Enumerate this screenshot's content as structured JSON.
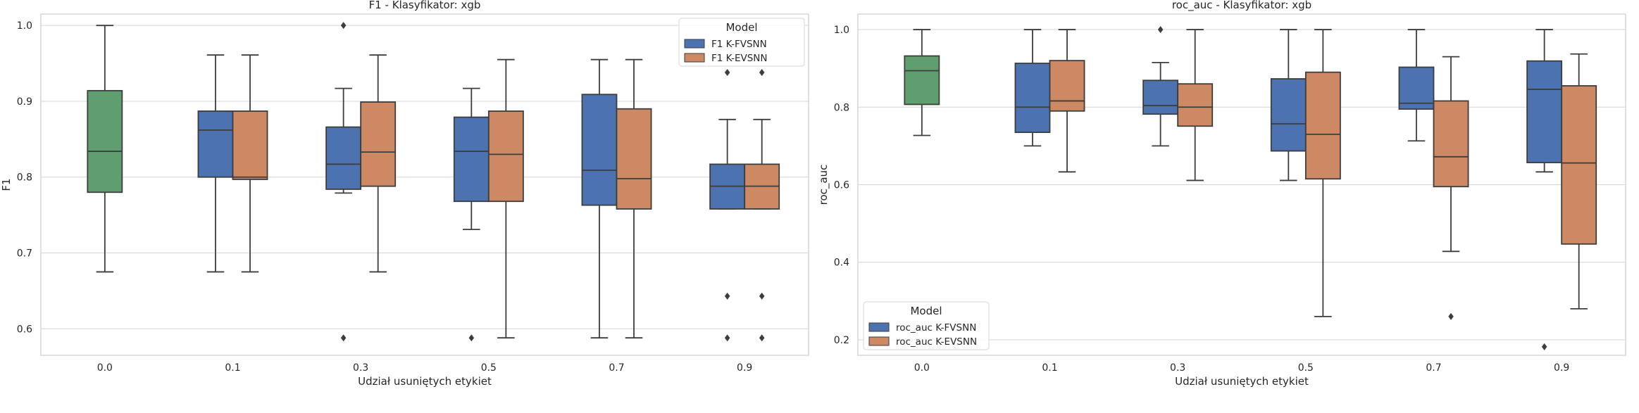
{
  "colors": {
    "baseline": "#59a14f",
    "fvsnn": "#4c72b0",
    "evsnn": "#dd8452",
    "fvsnn_hex": "#4c72b0",
    "evsnn_hex": "#cc8963",
    "green_hex": "#5f9e6e"
  },
  "chart_data": [
    {
      "type": "box",
      "title": "F1 - Klasyfikator: xgb",
      "xlabel": "Udział usuniętych etykiet",
      "ylabel": "F1",
      "ylim": [
        0.565,
        1.015
      ],
      "yticks": [
        "0.6",
        "0.7",
        "0.8",
        "0.9",
        "1.0"
      ],
      "ytick_values": [
        0.6,
        0.7,
        0.8,
        0.9,
        1.0
      ],
      "categories": [
        "0.0",
        "0.1",
        "0.3",
        "0.5",
        "0.7",
        "0.9"
      ],
      "legend": {
        "title": "Model",
        "position": "top-right",
        "entries": [
          "F1 K-FVSNN",
          "F1 K-EVSNN"
        ]
      },
      "groups": [
        {
          "category": "0.0",
          "series": "baseline",
          "whislo": 0.675,
          "q1": 0.78,
          "med": 0.834,
          "q3": 0.914,
          "whishi": 1.0,
          "fliers": []
        },
        {
          "category": "0.1",
          "series": "F1 K-FVSNN",
          "whislo": 0.675,
          "q1": 0.8,
          "med": 0.862,
          "q3": 0.887,
          "whishi": 0.961,
          "fliers": []
        },
        {
          "category": "0.1",
          "series": "F1 K-EVSNN",
          "whislo": 0.675,
          "q1": 0.797,
          "med": 0.8,
          "q3": 0.887,
          "whishi": 0.961,
          "fliers": []
        },
        {
          "category": "0.3",
          "series": "F1 K-FVSNN",
          "whislo": 0.779,
          "q1": 0.784,
          "med": 0.817,
          "q3": 0.866,
          "whishi": 0.917,
          "fliers": [
            0.588,
            1.0
          ]
        },
        {
          "category": "0.3",
          "series": "F1 K-EVSNN",
          "whislo": 0.675,
          "q1": 0.788,
          "med": 0.833,
          "q3": 0.899,
          "whishi": 0.961,
          "fliers": []
        },
        {
          "category": "0.5",
          "series": "F1 K-FVSNN",
          "whislo": 0.731,
          "q1": 0.768,
          "med": 0.834,
          "q3": 0.879,
          "whishi": 0.917,
          "fliers": [
            0.588
          ]
        },
        {
          "category": "0.5",
          "series": "F1 K-EVSNN",
          "whislo": 0.588,
          "q1": 0.768,
          "med": 0.83,
          "q3": 0.887,
          "whishi": 0.955,
          "fliers": []
        },
        {
          "category": "0.7",
          "series": "F1 K-FVSNN",
          "whislo": 0.588,
          "q1": 0.763,
          "med": 0.809,
          "q3": 0.909,
          "whishi": 0.955,
          "fliers": []
        },
        {
          "category": "0.7",
          "series": "F1 K-EVSNN",
          "whislo": 0.588,
          "q1": 0.758,
          "med": 0.798,
          "q3": 0.89,
          "whishi": 0.955,
          "fliers": []
        },
        {
          "category": "0.9",
          "series": "F1 K-FVSNN",
          "whislo": 0.758,
          "q1": 0.758,
          "med": 0.788,
          "q3": 0.817,
          "whishi": 0.876,
          "fliers": [
            0.938,
            0.643,
            0.588
          ]
        },
        {
          "category": "0.9",
          "series": "F1 K-EVSNN",
          "whislo": 0.758,
          "q1": 0.758,
          "med": 0.788,
          "q3": 0.817,
          "whishi": 0.876,
          "fliers": [
            0.938,
            0.643,
            0.588
          ]
        }
      ]
    },
    {
      "type": "box",
      "title": "roc_auc - Klasyfikator: xgb",
      "xlabel": "Udział usuniętych etykiet",
      "ylabel": "roc_auc",
      "ylim": [
        0.16,
        1.04
      ],
      "yticks": [
        "0.2",
        "0.4",
        "0.6",
        "0.8",
        "1.0"
      ],
      "ytick_values": [
        0.2,
        0.4,
        0.6,
        0.8,
        1.0
      ],
      "categories": [
        "0.0",
        "0.1",
        "0.3",
        "0.5",
        "0.7",
        "0.9"
      ],
      "legend": {
        "title": "Model",
        "position": "bottom-left",
        "entries": [
          "roc_auc K-FVSNN",
          "roc_auc K-EVSNN"
        ]
      },
      "groups": [
        {
          "category": "0.0",
          "series": "baseline",
          "whislo": 0.727,
          "q1": 0.807,
          "med": 0.894,
          "q3": 0.932,
          "whishi": 1.0,
          "fliers": []
        },
        {
          "category": "0.1",
          "series": "roc_auc K-FVSNN",
          "whislo": 0.7,
          "q1": 0.735,
          "med": 0.8,
          "q3": 0.913,
          "whishi": 1.0,
          "fliers": []
        },
        {
          "category": "0.1",
          "series": "roc_auc K-EVSNN",
          "whislo": 0.633,
          "q1": 0.79,
          "med": 0.816,
          "q3": 0.92,
          "whishi": 1.0,
          "fliers": []
        },
        {
          "category": "0.3",
          "series": "roc_auc K-FVSNN",
          "whislo": 0.7,
          "q1": 0.782,
          "med": 0.804,
          "q3": 0.869,
          "whishi": 0.915,
          "fliers": [
            1.0
          ]
        },
        {
          "category": "0.3",
          "series": "roc_auc K-EVSNN",
          "whislo": 0.611,
          "q1": 0.751,
          "med": 0.8,
          "q3": 0.86,
          "whishi": 1.0,
          "fliers": []
        },
        {
          "category": "0.5",
          "series": "roc_auc K-FVSNN",
          "whislo": 0.611,
          "q1": 0.687,
          "med": 0.757,
          "q3": 0.873,
          "whishi": 1.0,
          "fliers": []
        },
        {
          "category": "0.5",
          "series": "roc_auc K-EVSNN",
          "whislo": 0.26,
          "q1": 0.615,
          "med": 0.73,
          "q3": 0.89,
          "whishi": 1.0,
          "fliers": []
        },
        {
          "category": "0.7",
          "series": "roc_auc K-FVSNN",
          "whislo": 0.713,
          "q1": 0.795,
          "med": 0.81,
          "q3": 0.903,
          "whishi": 1.0,
          "fliers": []
        },
        {
          "category": "0.7",
          "series": "roc_auc K-EVSNN",
          "whislo": 0.428,
          "q1": 0.595,
          "med": 0.672,
          "q3": 0.816,
          "whishi": 0.93,
          "fliers": [
            0.26
          ]
        },
        {
          "category": "0.9",
          "series": "roc_auc K-FVSNN",
          "whislo": 0.633,
          "q1": 0.657,
          "med": 0.846,
          "q3": 0.919,
          "whishi": 1.0,
          "fliers": [
            0.182
          ]
        },
        {
          "category": "0.9",
          "series": "roc_auc K-EVSNN",
          "whislo": 0.28,
          "q1": 0.447,
          "med": 0.656,
          "q3": 0.855,
          "whishi": 0.937,
          "fliers": []
        }
      ]
    }
  ]
}
